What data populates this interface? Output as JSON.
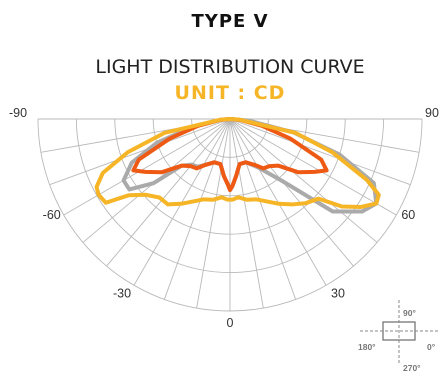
{
  "chart_data": {
    "type": "polar-line",
    "title": "TYPE V",
    "subtitle": "LIGHT DISTRIBUTION CURVE",
    "unit": "UNIT : CD",
    "angle_ticks": [
      {
        "angle": -90,
        "label": "-90"
      },
      {
        "angle": 90,
        "label": "90"
      },
      {
        "angle": -60,
        "label": "-60"
      },
      {
        "angle": 60,
        "label": "60"
      },
      {
        "angle": -30,
        "label": "-30"
      },
      {
        "angle": 30,
        "label": "30"
      },
      {
        "angle": 0,
        "label": "0"
      }
    ],
    "rmax": 1.0,
    "grid_rings": [
      0.2,
      0.4,
      0.6,
      0.8,
      1.0
    ],
    "grid_angle_step": 10,
    "series": [
      {
        "color": "#aaaaaa",
        "points": [
          [
            -85,
            0.05
          ],
          [
            -78,
            0.2
          ],
          [
            -72,
            0.4
          ],
          [
            -66,
            0.56
          ],
          [
            -60,
            0.64
          ],
          [
            -55,
            0.64
          ],
          [
            -50,
            0.52
          ],
          [
            -46,
            0.35
          ],
          [
            -40,
            0.31
          ],
          [
            -34,
            0.3
          ],
          [
            -28,
            0.27
          ],
          [
            -20,
            0.24
          ],
          [
            -12,
            0.24
          ],
          [
            -6,
            0.3
          ],
          [
            -2,
            0.34
          ],
          [
            0,
            0.37
          ],
          [
            2,
            0.35
          ],
          [
            6,
            0.3
          ],
          [
            12,
            0.24
          ],
          [
            20,
            0.24
          ],
          [
            30,
            0.29
          ],
          [
            40,
            0.42
          ],
          [
            48,
            0.72
          ],
          [
            55,
            0.84
          ],
          [
            60,
            0.88
          ],
          [
            66,
            0.82
          ],
          [
            72,
            0.6
          ],
          [
            78,
            0.34
          ],
          [
            85,
            0.1
          ]
        ]
      },
      {
        "color": "#ee5a13",
        "points": [
          [
            -85,
            0.05
          ],
          [
            -78,
            0.17
          ],
          [
            -72,
            0.33
          ],
          [
            -66,
            0.52
          ],
          [
            -62,
            0.57
          ],
          [
            -58,
            0.52
          ],
          [
            -52,
            0.45
          ],
          [
            -46,
            0.35
          ],
          [
            -40,
            0.32
          ],
          [
            -34,
            0.31
          ],
          [
            -28,
            0.27
          ],
          [
            -20,
            0.24
          ],
          [
            -12,
            0.24
          ],
          [
            -6,
            0.3
          ],
          [
            -2,
            0.34
          ],
          [
            0,
            0.37
          ],
          [
            2,
            0.35
          ],
          [
            6,
            0.3
          ],
          [
            12,
            0.24
          ],
          [
            20,
            0.24
          ],
          [
            28,
            0.27
          ],
          [
            34,
            0.31
          ],
          [
            40,
            0.32
          ],
          [
            46,
            0.35
          ],
          [
            52,
            0.45
          ],
          [
            58,
            0.52
          ],
          [
            62,
            0.57
          ],
          [
            66,
            0.52
          ],
          [
            72,
            0.33
          ],
          [
            78,
            0.17
          ],
          [
            85,
            0.05
          ]
        ]
      },
      {
        "color": "#f5b526",
        "points": [
          [
            -86,
            0.05
          ],
          [
            -78,
            0.35
          ],
          [
            -72,
            0.56
          ],
          [
            -67,
            0.72
          ],
          [
            -63,
            0.78
          ],
          [
            -60,
            0.79
          ],
          [
            -56,
            0.78
          ],
          [
            -53,
            0.66
          ],
          [
            -48,
            0.59
          ],
          [
            -42,
            0.55
          ],
          [
            -36,
            0.55
          ],
          [
            -30,
            0.51
          ],
          [
            -24,
            0.47
          ],
          [
            -18,
            0.44
          ],
          [
            -12,
            0.43
          ],
          [
            -6,
            0.41
          ],
          [
            -2,
            0.42
          ],
          [
            0,
            0.42
          ],
          [
            2,
            0.42
          ],
          [
            6,
            0.41
          ],
          [
            12,
            0.43
          ],
          [
            18,
            0.44
          ],
          [
            24,
            0.47
          ],
          [
            30,
            0.51
          ],
          [
            36,
            0.55
          ],
          [
            42,
            0.59
          ],
          [
            48,
            0.62
          ],
          [
            52,
            0.74
          ],
          [
            56,
            0.82
          ],
          [
            60,
            0.88
          ],
          [
            63,
            0.87
          ],
          [
            66,
            0.78
          ],
          [
            72,
            0.56
          ],
          [
            78,
            0.35
          ],
          [
            86,
            0.05
          ]
        ]
      }
    ]
  },
  "orientation_legend": {
    "top": "90°",
    "left": "180°",
    "right": "0°",
    "bottom": "270°"
  }
}
